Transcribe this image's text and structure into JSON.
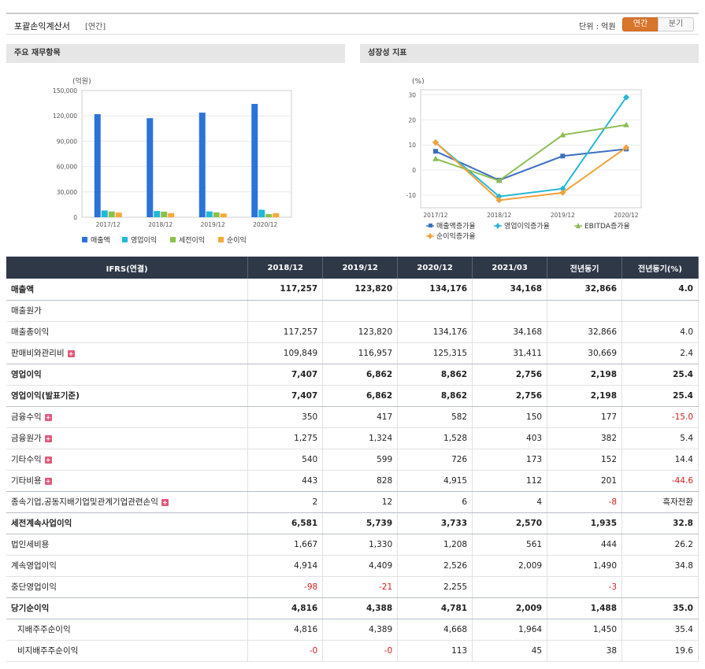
{
  "header": {
    "title": "포괄손익계산서",
    "tag": "[연간]",
    "unit": "단위 : 억원",
    "toggle_annual": "연간",
    "toggle_quarter": "분기"
  },
  "panel1": {
    "title": "주요 재무항목"
  },
  "panel2": {
    "title": "성장성 지표"
  },
  "chart_data": [
    {
      "type": "bar",
      "unit": "(억원)",
      "categories": [
        "2017/12",
        "2018/12",
        "2019/12",
        "2020/12"
      ],
      "ylim": [
        0,
        150000
      ],
      "yticks": [
        "0",
        "30,000",
        "60,000",
        "90,000",
        "120,000",
        "150,000"
      ],
      "series": [
        {
          "name": "매출액",
          "color": "#2b73d9",
          "values": [
            122000,
            117257,
            123820,
            134176
          ]
        },
        {
          "name": "영업이익",
          "color": "#22b8d8",
          "values": [
            8000,
            7407,
            6862,
            8862
          ]
        },
        {
          "name": "세전이익",
          "color": "#8cc04a",
          "values": [
            6800,
            6581,
            5739,
            3733
          ]
        },
        {
          "name": "순이익",
          "color": "#f4a93a",
          "values": [
            5500,
            4816,
            4388,
            4781
          ]
        }
      ]
    },
    {
      "type": "line",
      "unit": "(%)",
      "categories": [
        "2017/12",
        "2018/12",
        "2019/12",
        "2020/12"
      ],
      "ylim": [
        -15,
        32
      ],
      "yticks": [
        "-10",
        "0",
        "10",
        "20",
        "30"
      ],
      "series": [
        {
          "name": "매출액증가율",
          "color": "#3d6fc0",
          "marker": "square",
          "values": [
            7.5,
            -4.0,
            5.6,
            8.4
          ]
        },
        {
          "name": "영업이익증가율",
          "color": "#26b6d6",
          "marker": "diamond",
          "values": [
            11,
            -10.5,
            -7.4,
            29
          ]
        },
        {
          "name": "EBITDA증가율",
          "color": "#8cbd54",
          "marker": "triangle",
          "values": [
            4.5,
            -4.2,
            14.0,
            18.0
          ]
        },
        {
          "name": "순이익증가율",
          "color": "#f3a13a",
          "marker": "diamond",
          "values": [
            11,
            -12,
            -9,
            9
          ]
        }
      ]
    }
  ],
  "table": {
    "headers": [
      "IFRS(연결)",
      "2018/12",
      "2019/12",
      "2020/12",
      "2021/03",
      "전년동기",
      "전년동기(%)"
    ],
    "rows": [
      {
        "label": "매출액",
        "vals": [
          "117,257",
          "123,820",
          "134,176",
          "34,168",
          "32,866",
          "4.0"
        ]
      },
      {
        "label": "매출원가",
        "vals": [
          "",
          "",
          "",
          "",
          "",
          ""
        ]
      },
      {
        "label": "매출총이익",
        "vals": [
          "117,257",
          "123,820",
          "134,176",
          "34,168",
          "32,866",
          "4.0"
        ]
      },
      {
        "label": "판매비와관리비",
        "vals": [
          "109,849",
          "116,957",
          "125,315",
          "31,411",
          "30,669",
          "2.4"
        ]
      },
      {
        "label": "영업이익",
        "vals": [
          "7,407",
          "6,862",
          "8,862",
          "2,756",
          "2,198",
          "25.4"
        ]
      },
      {
        "label": "영업이익(발표기준)",
        "vals": [
          "7,407",
          "6,862",
          "8,862",
          "2,756",
          "2,198",
          "25.4"
        ]
      },
      {
        "label": "금융수익",
        "vals": [
          "350",
          "417",
          "582",
          "150",
          "177",
          "-15.0"
        ]
      },
      {
        "label": "금융원가",
        "vals": [
          "1,275",
          "1,324",
          "1,528",
          "403",
          "382",
          "5.4"
        ]
      },
      {
        "label": "기타수익",
        "vals": [
          "540",
          "599",
          "726",
          "173",
          "152",
          "14.4"
        ]
      },
      {
        "label": "기타비용",
        "vals": [
          "443",
          "828",
          "4,915",
          "112",
          "201",
          "-44.6"
        ]
      },
      {
        "label": "종속기업,공동지배기업및관계기업관련손익",
        "vals": [
          "2",
          "12",
          "6",
          "4",
          "-8",
          "흑자전환"
        ]
      },
      {
        "label": "세전계속사업이익",
        "vals": [
          "6,581",
          "5,739",
          "3,733",
          "2,570",
          "1,935",
          "32.8"
        ]
      },
      {
        "label": "법인세비용",
        "vals": [
          "1,667",
          "1,330",
          "1,208",
          "561",
          "444",
          "26.2"
        ]
      },
      {
        "label": "계속영업이익",
        "vals": [
          "4,914",
          "4,409",
          "2,526",
          "2,009",
          "1,490",
          "34.8"
        ]
      },
      {
        "label": "중단영업이익",
        "vals": [
          "-98",
          "-21",
          "2,255",
          "",
          "-3",
          ""
        ]
      },
      {
        "label": "당기순이익",
        "vals": [
          "4,816",
          "4,388",
          "4,781",
          "2,009",
          "1,488",
          "35.0"
        ]
      },
      {
        "label": "지배주주순이익",
        "vals": [
          "4,816",
          "4,389",
          "4,668",
          "1,964",
          "1,450",
          "35.4"
        ]
      },
      {
        "label": "비지배주주순이익",
        "vals": [
          "-0",
          "-0",
          "113",
          "45",
          "38",
          "19.6"
        ]
      }
    ]
  }
}
